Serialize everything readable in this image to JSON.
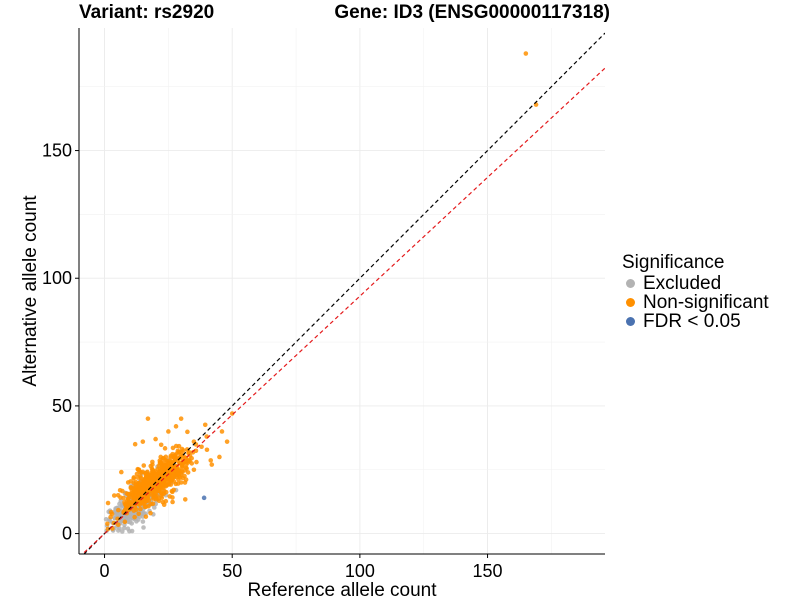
{
  "titles": {
    "left": "Variant: rs2920",
    "right": "Gene: ID3 (ENSG00000117318)"
  },
  "legend": {
    "title": "Significance",
    "items": [
      {
        "label": "Excluded",
        "color": "#b3b3b3"
      },
      {
        "label": "Non-significant",
        "color": "#ff9000"
      },
      {
        "label": "FDR < 0.05",
        "color": "#4a72b0"
      }
    ]
  },
  "chart_data": {
    "type": "scatter",
    "xlabel": "Reference allele count",
    "ylabel": "Alternative allele count",
    "xlim": [
      -10,
      196
    ],
    "ylim": [
      -8,
      198
    ],
    "xticks": [
      0,
      50,
      100,
      150
    ],
    "yticks": [
      0,
      50,
      100,
      150
    ],
    "grid": true,
    "legend_position": "right",
    "reference_lines": [
      {
        "name": "y = x",
        "slope": 1.0,
        "intercept": 0,
        "color": "#000000",
        "style": "dashed"
      },
      {
        "name": "fit",
        "slope": 0.93,
        "intercept": 0,
        "color": "#e41a1c",
        "style": "dashed"
      }
    ],
    "series": [
      {
        "name": "Excluded",
        "color": "#b3b3b3",
        "approx_count": 400,
        "center": [
          13,
          12
        ],
        "spread": [
          5,
          5
        ],
        "points": [
          [
            1,
            3
          ],
          [
            2,
            5
          ],
          [
            3,
            2
          ],
          [
            4,
            6
          ],
          [
            5,
            4
          ],
          [
            6,
            9
          ],
          [
            7,
            5
          ],
          [
            8,
            10
          ],
          [
            9,
            7
          ],
          [
            10,
            12
          ],
          [
            11,
            8
          ],
          [
            12,
            15
          ],
          [
            14,
            11
          ],
          [
            15,
            18
          ],
          [
            16,
            13
          ],
          [
            18,
            16
          ],
          [
            20,
            14
          ],
          [
            22,
            19
          ],
          [
            24,
            15
          ],
          [
            26,
            20
          ],
          [
            28,
            17
          ]
        ]
      },
      {
        "name": "Non-significant",
        "color": "#ff9000",
        "approx_count": 600,
        "center": [
          20,
          20
        ],
        "spread": [
          7,
          6
        ],
        "points": [
          [
            12,
            35
          ],
          [
            15,
            36
          ],
          [
            17,
            45
          ],
          [
            20,
            37
          ],
          [
            22,
            30
          ],
          [
            25,
            40
          ],
          [
            28,
            42
          ],
          [
            30,
            45
          ],
          [
            33,
            32
          ],
          [
            35,
            36
          ],
          [
            36,
            28
          ],
          [
            38,
            34
          ],
          [
            40,
            38
          ],
          [
            42,
            27
          ],
          [
            45,
            30
          ],
          [
            48,
            36
          ],
          [
            50,
            47
          ],
          [
            46,
            40
          ],
          [
            18,
            8
          ],
          [
            30,
            20
          ],
          [
            35,
            25
          ],
          [
            165,
            188
          ],
          [
            169,
            168
          ]
        ]
      },
      {
        "name": "FDR < 0.05",
        "color": "#4a72b0",
        "points": [
          [
            39,
            14
          ]
        ]
      }
    ]
  }
}
